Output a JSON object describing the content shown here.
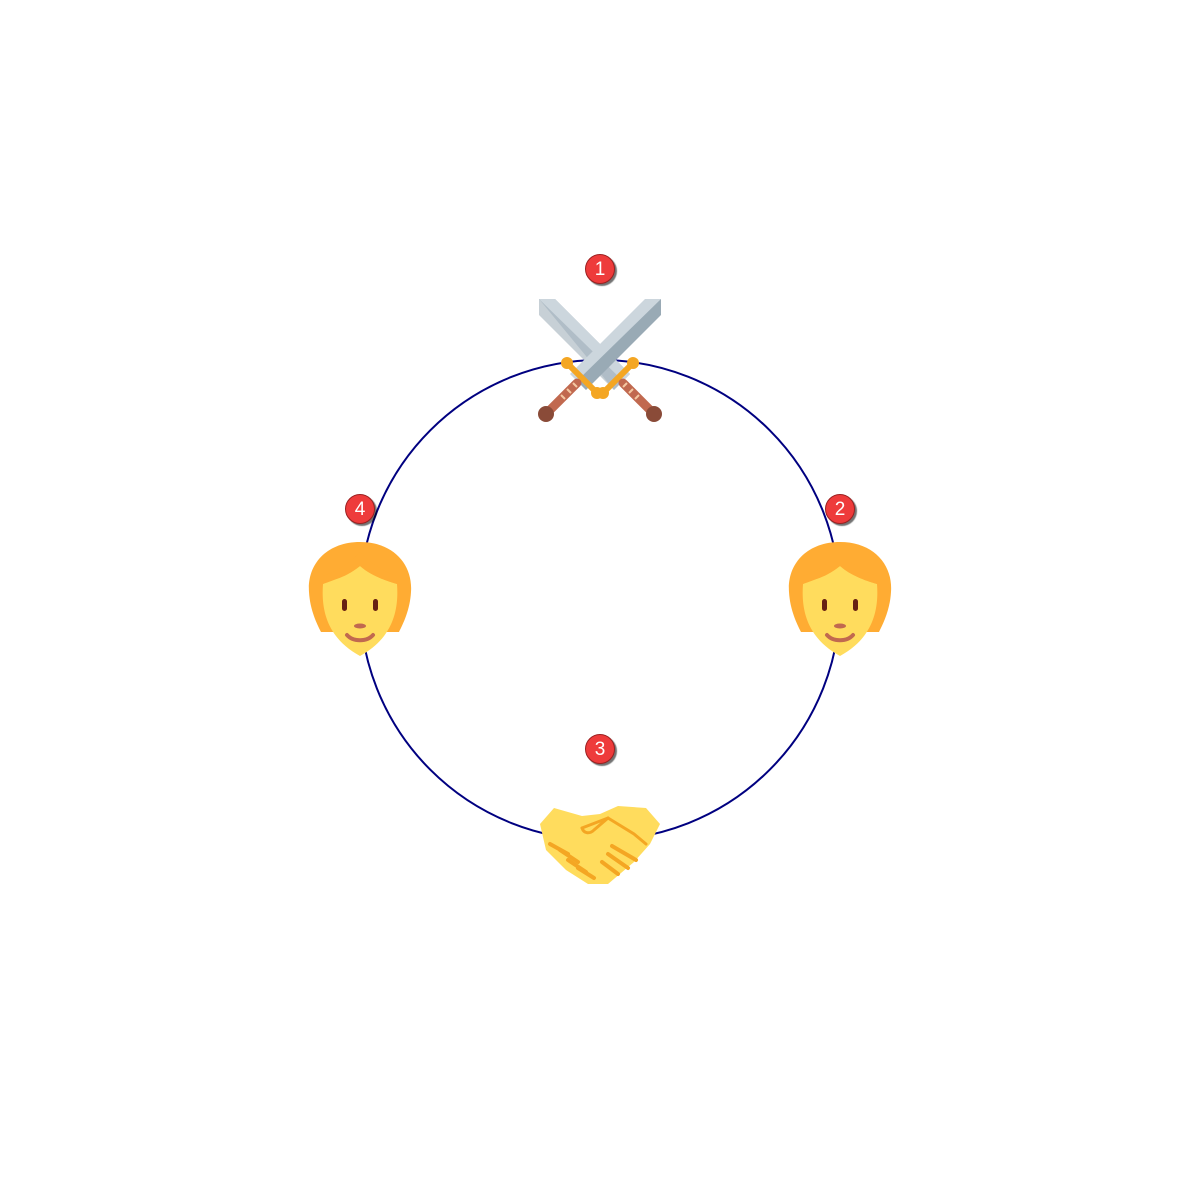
{
  "diagram": {
    "ring_color": "#000080",
    "badge_color": "#ee3b3b",
    "nodes": [
      {
        "step": "1",
        "icon": "crossed-swords-icon"
      },
      {
        "step": "2",
        "icon": "person-icon"
      },
      {
        "step": "3",
        "icon": "handshake-icon"
      },
      {
        "step": "4",
        "icon": "person-icon"
      }
    ]
  }
}
